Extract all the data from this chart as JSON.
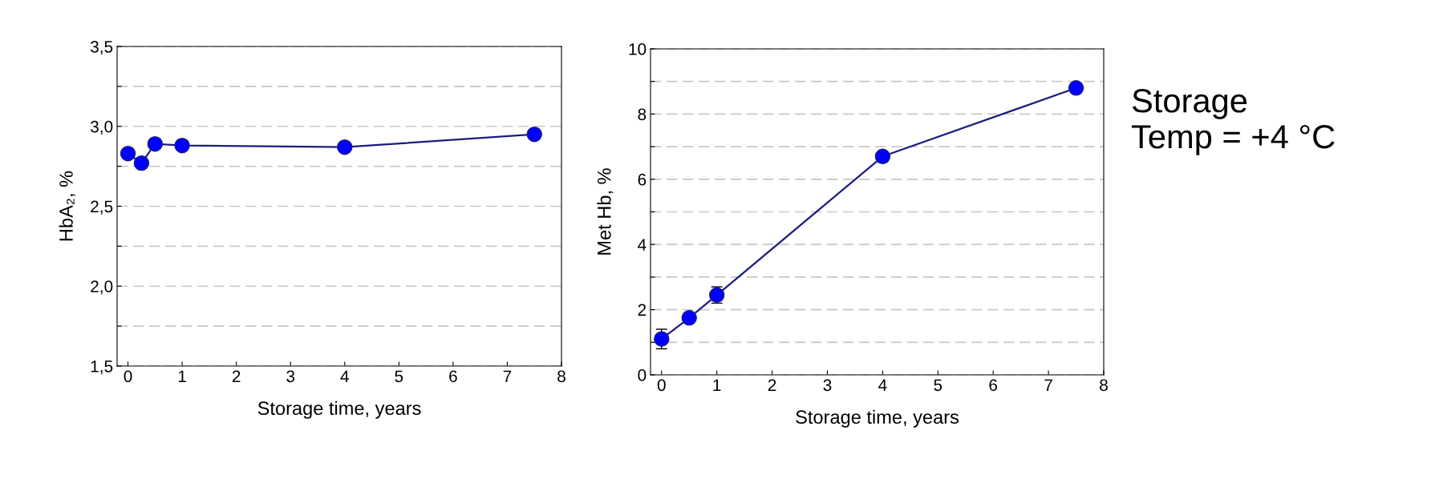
{
  "chart_data": [
    {
      "type": "line",
      "xlabel": "Storage time, years",
      "ylabel": "HbA₂, %",
      "marker": "circle",
      "line_style": "solid",
      "grid": "y",
      "x": [
        0,
        0.25,
        0.5,
        1,
        4,
        7.5
      ],
      "series": [
        {
          "color": "#0000ff",
          "values": [
            2.83,
            2.77,
            2.89,
            2.88,
            2.87,
            2.95
          ]
        }
      ],
      "xlim": [
        -0.2,
        8
      ],
      "xticks": [
        0,
        1,
        2,
        3,
        4,
        5,
        6,
        7,
        8
      ],
      "ylim": [
        1.5,
        3.5
      ],
      "yticks": [
        {
          "value": 1.5,
          "label": "1,5"
        },
        {
          "value": 1.75,
          "label": null
        },
        {
          "value": 2.0,
          "label": "2,0"
        },
        {
          "value": 2.25,
          "label": null
        },
        {
          "value": 2.5,
          "label": "2,5"
        },
        {
          "value": 2.75,
          "label": null
        },
        {
          "value": 3.0,
          "label": "3,0"
        },
        {
          "value": 3.25,
          "label": null
        },
        {
          "value": 3.5,
          "label": "3,5"
        }
      ]
    },
    {
      "type": "line",
      "xlabel": "Storage time, years",
      "ylabel": "Met Hb, %",
      "marker": "circle",
      "line_style": "solid",
      "grid": "y",
      "x": [
        0,
        0.5,
        1,
        4,
        7.5
      ],
      "series": [
        {
          "color": "#0000ff",
          "values": [
            1.1,
            1.75,
            2.45,
            6.7,
            8.8
          ],
          "errors": [
            0.3,
            null,
            0.25,
            null,
            null
          ]
        }
      ],
      "xlim": [
        -0.2,
        8
      ],
      "xticks": [
        0,
        1,
        2,
        3,
        4,
        5,
        6,
        7,
        8
      ],
      "ylim": [
        0,
        10
      ],
      "yticks": [
        0,
        {
          "value": 1,
          "label": null
        },
        2,
        {
          "value": 3,
          "label": null
        },
        4,
        {
          "value": 5,
          "label": null
        },
        6,
        {
          "value": 7,
          "label": null
        },
        8,
        {
          "value": 9,
          "label": null
        },
        10
      ],
      "annotations": [
        "Storage\nTemp = +4 °C"
      ]
    }
  ]
}
